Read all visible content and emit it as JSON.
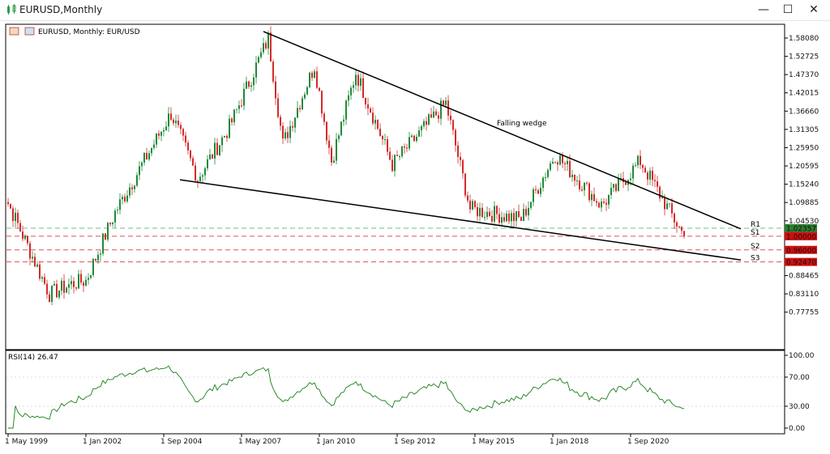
{
  "window": {
    "title": "EURUSD,Monthly",
    "minimize_icon": "minimize-icon",
    "maximize_icon": "maximize-icon",
    "close_icon": "close-icon"
  },
  "chart_header": {
    "symbol_label": "EURUSD, Monthly:  EUR/USD"
  },
  "annotation": {
    "text": "Falling wedge"
  },
  "levels": [
    {
      "name": "R1",
      "value": 1.02357,
      "label": "1.02357",
      "color": "#7fba8c",
      "badge_color": "#2e7d32"
    },
    {
      "name": "S1",
      "value": 1.0,
      "label": "1.00000",
      "color": "#e05050",
      "badge_color": "#d01010"
    },
    {
      "name": "S2",
      "value": 0.96,
      "label": "0.96000",
      "color": "#e05050",
      "badge_color": "#d01010"
    },
    {
      "name": "S3",
      "value": 0.9247,
      "label": "0.92470",
      "color": "#e05050",
      "badge_color": "#d01010"
    }
  ],
  "price_axis_labels": [
    {
      "text": "1.58080",
      "value": 1.5808
    },
    {
      "text": "1.52725",
      "value": 1.52725
    },
    {
      "text": "1.47370",
      "value": 1.4737
    },
    {
      "text": "1.42015",
      "value": 1.42015
    },
    {
      "text": "1.36660",
      "value": 1.3666
    },
    {
      "text": "1.31305",
      "value": 1.31305
    },
    {
      "text": "1.25950",
      "value": 1.2595
    },
    {
      "text": "1.20595",
      "value": 1.20595
    },
    {
      "text": "1.15240",
      "value": 1.1524
    },
    {
      "text": "1.09885",
      "value": 1.09885
    },
    {
      "text": "1.04530",
      "value": 1.0453
    },
    {
      "text": "0.88465",
      "value": 0.88465
    },
    {
      "text": "0.83110",
      "value": 0.8311
    },
    {
      "text": "0.77755",
      "value": 0.77755
    }
  ],
  "rsi": {
    "label": "RSI(14) 26.47",
    "axis_labels": [
      {
        "text": "100.00",
        "value": 100
      },
      {
        "text": "70.00",
        "value": 70
      },
      {
        "text": "30.00",
        "value": 30
      },
      {
        "text": "0.00",
        "value": 0
      }
    ],
    "line_color": "#1a7f1a"
  },
  "time_axis_labels": [
    "1 May 1999",
    "1 Jan 2002",
    "1 Sep 2004",
    "1 May 2007",
    "1 Jan 2010",
    "1 Sep 2012",
    "1 May 2015",
    "1 Jan 2018",
    "1 Sep 2020"
  ],
  "colors": {
    "bull": "#1f8a3a",
    "bear": "#d62a2a",
    "trendline": "#000000"
  },
  "chart_data": {
    "type": "candlestick",
    "symbol": "EURUSD",
    "timeframe": "Monthly",
    "price_range": [
      0.73,
      1.62
    ],
    "close_series": [
      {
        "date": "1999-01",
        "close": 1.16
      },
      {
        "date": "2000-10",
        "close": 0.83
      },
      {
        "date": "2001-07",
        "close": 0.86
      },
      {
        "date": "2002-01",
        "close": 0.87
      },
      {
        "date": "2003-01",
        "close": 1.07
      },
      {
        "date": "2004-12",
        "close": 1.36
      },
      {
        "date": "2005-11",
        "close": 1.17
      },
      {
        "date": "2006-12",
        "close": 1.32
      },
      {
        "date": "2008-04",
        "close": 1.58
      },
      {
        "date": "2008-10",
        "close": 1.27
      },
      {
        "date": "2009-11",
        "close": 1.5
      },
      {
        "date": "2010-06",
        "close": 1.22
      },
      {
        "date": "2011-04",
        "close": 1.48
      },
      {
        "date": "2012-07",
        "close": 1.21
      },
      {
        "date": "2014-05",
        "close": 1.39
      },
      {
        "date": "2015-03",
        "close": 1.08
      },
      {
        "date": "2016-12",
        "close": 1.05
      },
      {
        "date": "2018-02",
        "close": 1.24
      },
      {
        "date": "2019-09",
        "close": 1.09
      },
      {
        "date": "2021-01",
        "close": 1.22
      },
      {
        "date": "2022-07",
        "close": 1.0
      }
    ],
    "rsi_period": 14,
    "rsi_last": 26.47
  }
}
